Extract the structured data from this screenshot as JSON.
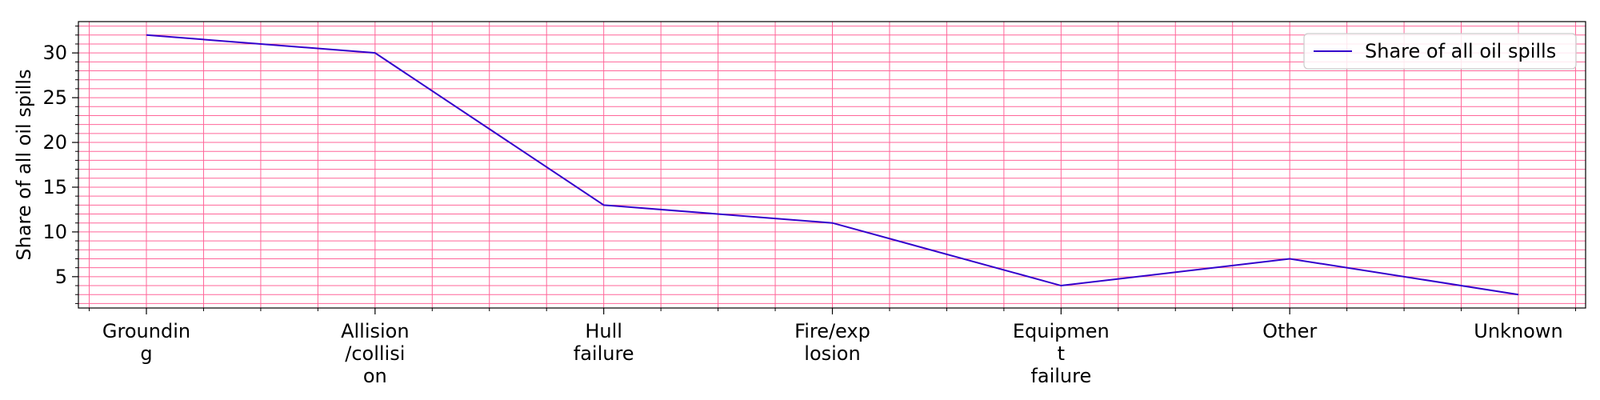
{
  "chart_data": {
    "type": "line",
    "categories": [
      [
        "Groundin",
        "g"
      ],
      [
        "Allision",
        "/collisi",
        "on"
      ],
      [
        "Hull",
        "failure"
      ],
      [
        "Fire/exp",
        "losion"
      ],
      [
        "Equipmen",
        "t",
        "failure"
      ],
      [
        "Other"
      ],
      [
        "Unknown"
      ]
    ],
    "series": [
      {
        "name": "Share of all oil spills",
        "values": [
          32,
          30,
          13,
          11,
          4,
          7,
          3
        ],
        "color": "#3300cc"
      }
    ],
    "xlabel": "",
    "ylabel": "Share of all oil spills",
    "ylim": [
      1.5,
      33.5
    ],
    "yticks": [
      5,
      10,
      15,
      20,
      25,
      30
    ],
    "grid": true,
    "grid_color": "#ff6699",
    "legend_position": "top-right"
  }
}
